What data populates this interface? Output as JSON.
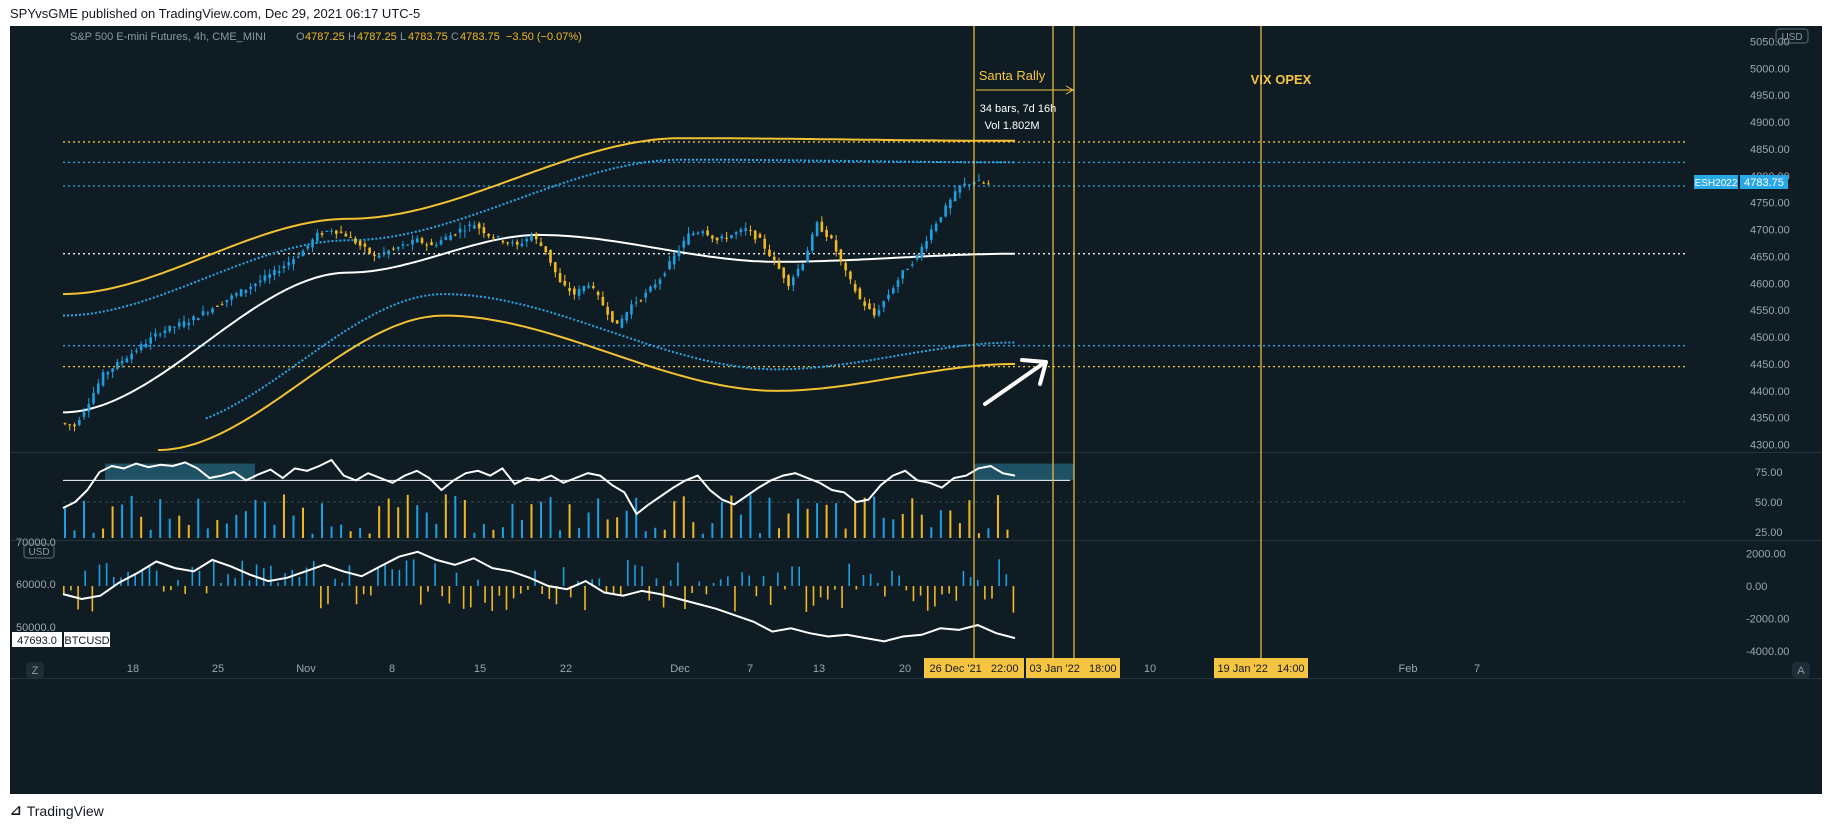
{
  "header": {
    "text": "SPYvsGME published on TradingView.com, Dec 29, 2021 06:17 UTC-5"
  },
  "footer": {
    "brand": "TradingView"
  },
  "legend": {
    "symbol": "S&P 500 E-mini Futures, 4h, CME_MINI",
    "o_label": "O",
    "o": "4787.25",
    "h_label": "H",
    "h": "4787.25",
    "l_label": "L",
    "l": "4783.75",
    "c_label": "C",
    "c": "4783.75",
    "change": "−3.50 (−0.07%)"
  },
  "currency_main": "USD",
  "currency_btc": "USD",
  "price_tag": {
    "symbol": "ESH2022",
    "value": "4783.75"
  },
  "btc_tag": {
    "value": "47693.0",
    "symbol": "BTCUSD"
  },
  "range_annotation": {
    "label": "Santa Rally",
    "bars": "34 bars, 7d 16h",
    "vol": "Vol 1.802M"
  },
  "vix_label": "VIX OPEX",
  "corner_left": "Z",
  "corner_right": "A",
  "date_flags": [
    "26 Dec '21   22:00",
    "03 Jan '22   18:00",
    "19 Jan '22   14:00"
  ],
  "colors": {
    "background": "#0f1c24",
    "up": "#1e9fe0",
    "down": "#f2b824",
    "band_gold": "#f2c233",
    "band_blue": "#29a8e8",
    "ma_white": "#ffffff",
    "annotation": "#f5c542",
    "flag_bg": "#f5c542",
    "tag_bg": "#29a8e8"
  },
  "chart_data": [
    {
      "type": "line",
      "name": "S&P 500 E-mini Futures 4h",
      "y_axis_ticks": [
        5050,
        5000,
        4950,
        4900,
        4850,
        4800,
        4750,
        4700,
        4650,
        4600,
        4550,
        4500,
        4450,
        4400,
        4350,
        4300
      ],
      "ylim": [
        4290,
        5060
      ],
      "x_axis_ticks": [
        "18",
        "25",
        "Nov",
        "8",
        "15",
        "22",
        "Dec",
        "7",
        "13",
        "20",
        "10",
        "Feb",
        "7"
      ],
      "close_path": [
        [
          0,
          4340
        ],
        [
          3,
          4335
        ],
        [
          6,
          4380
        ],
        [
          9,
          4430
        ],
        [
          12,
          4450
        ],
        [
          15,
          4470
        ],
        [
          18,
          4490
        ],
        [
          21,
          4510
        ],
        [
          24,
          4520
        ],
        [
          27,
          4530
        ],
        [
          30,
          4545
        ],
        [
          33,
          4560
        ],
        [
          36,
          4575
        ],
        [
          39,
          4590
        ],
        [
          42,
          4605
        ],
        [
          45,
          4620
        ],
        [
          48,
          4640
        ],
        [
          51,
          4660
        ],
        [
          54,
          4690
        ],
        [
          57,
          4700
        ],
        [
          60,
          4690
        ],
        [
          63,
          4670
        ],
        [
          66,
          4650
        ],
        [
          69,
          4660
        ],
        [
          72,
          4670
        ],
        [
          75,
          4680
        ],
        [
          78,
          4670
        ],
        [
          81,
          4685
        ],
        [
          84,
          4700
        ],
        [
          87,
          4710
        ],
        [
          90,
          4690
        ],
        [
          93,
          4680
        ],
        [
          96,
          4670
        ],
        [
          99,
          4690
        ],
        [
          102,
          4660
        ],
        [
          105,
          4600
        ],
        [
          108,
          4580
        ],
        [
          111,
          4600
        ],
        [
          114,
          4560
        ],
        [
          117,
          4520
        ],
        [
          120,
          4560
        ],
        [
          123,
          4580
        ],
        [
          126,
          4610
        ],
        [
          129,
          4650
        ],
        [
          132,
          4690
        ],
        [
          135,
          4700
        ],
        [
          138,
          4680
        ],
        [
          141,
          4690
        ],
        [
          144,
          4700
        ],
        [
          147,
          4680
        ],
        [
          150,
          4640
        ],
        [
          153,
          4600
        ],
        [
          156,
          4640
        ],
        [
          159,
          4710
        ],
        [
          162,
          4680
        ],
        [
          165,
          4620
        ],
        [
          168,
          4570
        ],
        [
          171,
          4540
        ],
        [
          174,
          4580
        ],
        [
          177,
          4620
        ],
        [
          180,
          4650
        ],
        [
          183,
          4700
        ],
        [
          186,
          4740
        ],
        [
          189,
          4780
        ],
        [
          192,
          4790
        ],
        [
          195,
          4784
        ]
      ],
      "horizontal_levels": [
        4863,
        4825,
        4781,
        4655,
        4484,
        4445
      ],
      "upper_gold_band": [
        [
          0,
          4580
        ],
        [
          60,
          4720
        ],
        [
          130,
          4870
        ],
        [
          200,
          4865
        ]
      ],
      "lower_gold_band": [
        [
          20,
          4290
        ],
        [
          80,
          4540
        ],
        [
          150,
          4400
        ],
        [
          200,
          4450
        ]
      ],
      "ma_white": [
        [
          0,
          4360
        ],
        [
          60,
          4620
        ],
        [
          100,
          4690
        ],
        [
          150,
          4640
        ],
        [
          200,
          4655
        ]
      ],
      "arrow_annotation": "up-right"
    },
    {
      "type": "line",
      "name": "Oscillator",
      "y_axis_ticks": [
        75.0,
        50.0,
        25.0
      ],
      "ylim": [
        20,
        90
      ],
      "levels": [
        68.0
      ],
      "values": [
        45,
        50,
        60,
        75,
        80,
        78,
        82,
        79,
        81,
        80,
        83,
        78,
        70,
        72,
        75,
        68,
        73,
        77,
        70,
        78,
        76,
        80,
        85,
        72,
        68,
        74,
        70,
        66,
        72,
        76,
        70,
        60,
        68,
        74,
        76,
        72,
        78,
        65,
        70,
        68,
        72,
        66,
        70,
        74,
        72,
        64,
        58,
        40,
        48,
        55,
        62,
        68,
        72,
        60,
        52,
        48,
        55,
        62,
        68,
        72,
        74,
        70,
        66,
        60,
        58,
        50,
        52,
        64,
        72,
        76,
        68,
        66,
        62,
        70,
        72,
        78,
        80,
        74,
        72
      ],
      "histogram": "volume"
    },
    {
      "type": "line",
      "name": "BTCUSD comparison",
      "y_axis_ticks_left": [
        70000.0,
        60000.0,
        50000.0
      ],
      "y_axis_ticks_right": [
        2000.0,
        0.0,
        -2000.0,
        -4000.0
      ],
      "ylim": [
        -4300,
        2700
      ],
      "values": [
        -500,
        -800,
        -600,
        200,
        800,
        1500,
        1100,
        900,
        1600,
        1200,
        700,
        300,
        500,
        900,
        1300,
        900,
        600,
        1200,
        1800,
        2100,
        1600,
        1300,
        1700,
        1100,
        900,
        500,
        0,
        -200,
        300,
        -400,
        -600,
        -300,
        -500,
        -800,
        -1100,
        -1400,
        -1800,
        -2200,
        -2800,
        -2600,
        -2900,
        -3100,
        -3000,
        -3200,
        -3400,
        -3100,
        -3000,
        -2600,
        -2700,
        -2400,
        -2900,
        -3200
      ]
    }
  ]
}
